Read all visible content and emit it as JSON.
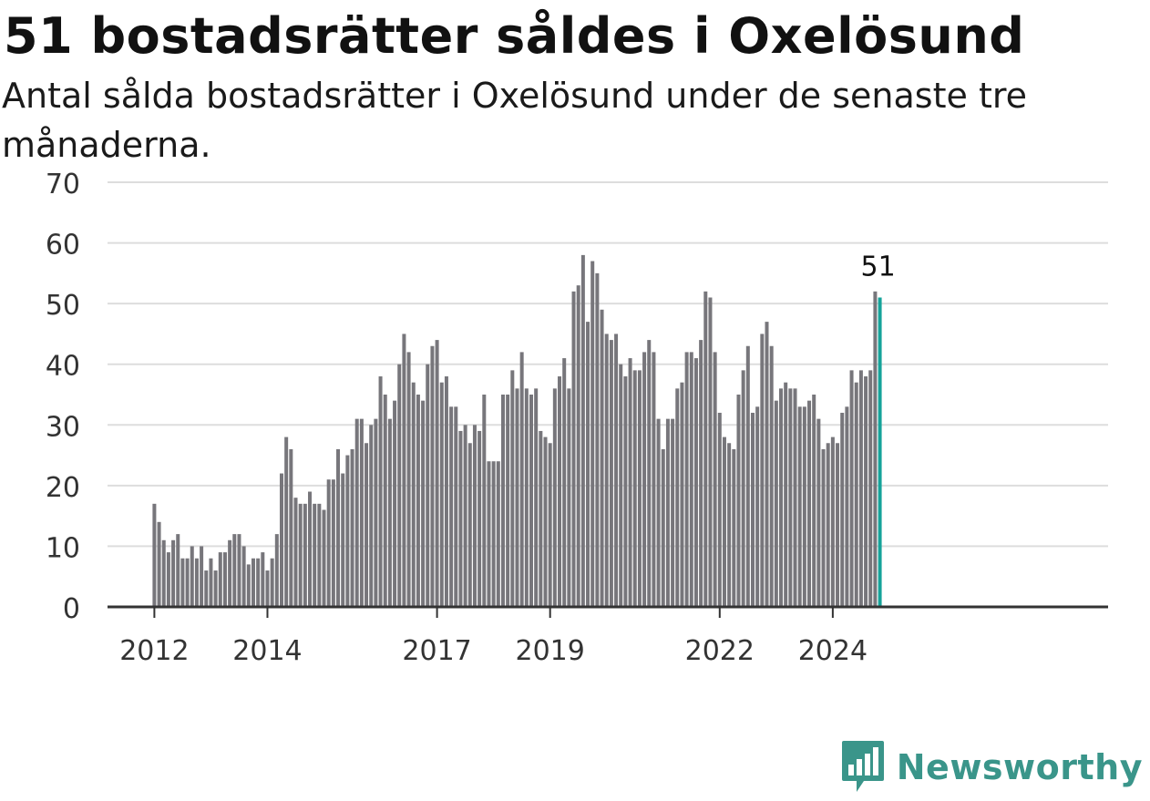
{
  "header": {
    "title": "51 bostadsrätter såldes i Oxelösund",
    "subtitle": "Antal sålda bostadsrätter i Oxelösund under de senaste tre månaderna."
  },
  "brand": {
    "name": "Newsworthy",
    "color": "#3a958a",
    "icon": "bar-chart-speech-bubble-icon"
  },
  "chart_data": {
    "type": "bar",
    "title": "51 bostadsrätter såldes i Oxelösund",
    "subtitle": "Antal sålda bostadsrätter i Oxelösund under de senaste tre månaderna.",
    "xlabel": "",
    "ylabel": "",
    "ylim": [
      0,
      70
    ],
    "yticks": [
      0,
      10,
      20,
      30,
      40,
      50,
      60,
      70
    ],
    "grid": true,
    "legend": "none",
    "x_start": "2012-01",
    "x_tick_labels": [
      {
        "label": "2012",
        "date": "2012-01"
      },
      {
        "label": "2014",
        "date": "2014-01"
      },
      {
        "label": "2017",
        "date": "2017-01"
      },
      {
        "label": "2019",
        "date": "2019-01"
      },
      {
        "label": "2022",
        "date": "2022-01"
      },
      {
        "label": "2024",
        "date": "2024-01"
      }
    ],
    "bar_color": "#77767b",
    "highlight_color": "#16a39a",
    "values": [
      17,
      14,
      11,
      9,
      11,
      12,
      8,
      8,
      10,
      8,
      10,
      6,
      8,
      6,
      9,
      9,
      11,
      12,
      12,
      10,
      7,
      8,
      8,
      9,
      6,
      8,
      12,
      22,
      28,
      26,
      18,
      17,
      17,
      19,
      17,
      17,
      16,
      21,
      21,
      26,
      22,
      25,
      26,
      31,
      31,
      27,
      30,
      31,
      38,
      35,
      31,
      34,
      40,
      45,
      42,
      37,
      35,
      34,
      40,
      43,
      44,
      37,
      38,
      33,
      33,
      29,
      30,
      27,
      30,
      29,
      35,
      24,
      24,
      24,
      35,
      35,
      39,
      36,
      42,
      36,
      35,
      36,
      29,
      28,
      27,
      36,
      38,
      41,
      36,
      52,
      53,
      58,
      47,
      57,
      55,
      49,
      45,
      44,
      45,
      40,
      38,
      41,
      39,
      39,
      42,
      44,
      42,
      31,
      26,
      31,
      31,
      36,
      37,
      42,
      42,
      41,
      44,
      52,
      51,
      42,
      32,
      28,
      27,
      26,
      35,
      39,
      43,
      32,
      33,
      45,
      47,
      43,
      34,
      36,
      37,
      36,
      36,
      33,
      33,
      34,
      35,
      31,
      26,
      27,
      28,
      27,
      32,
      33,
      39,
      37,
      39,
      38,
      39,
      52,
      51
    ],
    "highlight_label": "51"
  }
}
